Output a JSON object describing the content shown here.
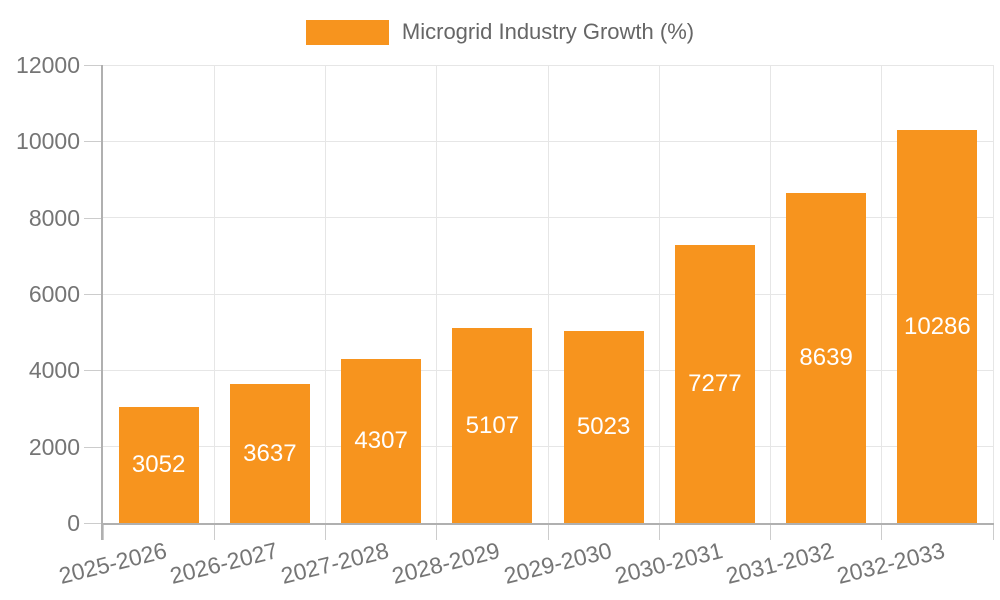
{
  "legend": {
    "label": "Microgrid Industry Growth (%)"
  },
  "colors": {
    "bar": "#F7941E",
    "grid": "#e6e6e6",
    "axis": "#b0b0b0",
    "tick": "#cccccc",
    "label_text": "#757575",
    "legend_text": "#666666",
    "value_text": "#ffffff"
  },
  "chart_data": {
    "type": "bar",
    "title": "",
    "series_name": "Microgrid Industry Growth (%)",
    "categories": [
      "2025-2026",
      "2026-2027",
      "2027-2028",
      "2028-2029",
      "2029-2030",
      "2030-2031",
      "2031-2032",
      "2032-2033"
    ],
    "values": [
      3052,
      3637,
      4307,
      5107,
      5023,
      7277,
      8639,
      10286
    ],
    "xlabel": "",
    "ylabel": "",
    "ylim": [
      0,
      12000
    ],
    "yticks": [
      0,
      2000,
      4000,
      6000,
      8000,
      10000,
      12000
    ],
    "grid": true,
    "legend_position": "top-center",
    "value_labels": "inside-center",
    "x_tick_rotation_deg": -14
  }
}
